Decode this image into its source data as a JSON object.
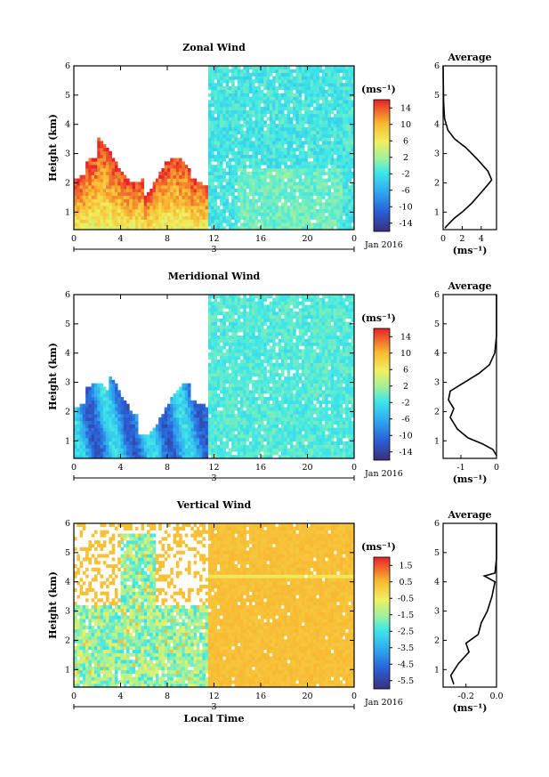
{
  "chart_data": [
    {
      "type": "heatmap",
      "title": "Zonal Wind",
      "ylabel": "Height (km)",
      "xlabel": "",
      "x_ticks": [
        "0",
        "4",
        "8",
        "12",
        "16",
        "20",
        "0"
      ],
      "y_ticks": [
        "1",
        "2",
        "3",
        "4",
        "5",
        "6"
      ],
      "ylim": [
        0.4,
        6
      ],
      "xlim": [
        0,
        24
      ],
      "date_label": "Jan 2016",
      "day_label": "3",
      "colorbar_unit": "(ms⁻¹)",
      "colorbar_ticks": [
        "14",
        "10",
        "6",
        "2",
        "-2",
        "-6",
        "-10",
        "-14"
      ],
      "colorbar_range": [
        -16,
        16
      ],
      "average": {
        "title": "Average",
        "xlabel": "(ms⁻¹)",
        "x_ticks": [
          "0",
          "2",
          "4"
        ],
        "xlim": [
          0,
          5.6
        ],
        "profile": [
          [
            0.2,
            0.45
          ],
          [
            0.3,
            0.5
          ],
          [
            0.6,
            0.6
          ],
          [
            1.2,
            0.8
          ],
          [
            2.0,
            1.0
          ],
          [
            3.0,
            1.3
          ],
          [
            3.8,
            1.6
          ],
          [
            4.6,
            1.9
          ],
          [
            5.1,
            2.1
          ],
          [
            4.7,
            2.4
          ],
          [
            3.6,
            2.8
          ],
          [
            2.4,
            3.2
          ],
          [
            1.2,
            3.5
          ],
          [
            0.5,
            3.8
          ],
          [
            0.15,
            4.2
          ],
          [
            0.05,
            4.8
          ],
          [
            0.02,
            5.5
          ],
          [
            0.0,
            6.0
          ]
        ]
      }
    },
    {
      "type": "heatmap",
      "title": "Meridional Wind",
      "ylabel": "Height (km)",
      "xlabel": "",
      "x_ticks": [
        "0",
        "4",
        "8",
        "12",
        "16",
        "20",
        "0"
      ],
      "y_ticks": [
        "1",
        "2",
        "3",
        "4",
        "5",
        "6"
      ],
      "ylim": [
        0.4,
        6
      ],
      "xlim": [
        0,
        24
      ],
      "date_label": "Jan 2016",
      "day_label": "3",
      "colorbar_unit": "(ms⁻¹)",
      "colorbar_ticks": [
        "14",
        "10",
        "6",
        "2",
        "-2",
        "-6",
        "-10",
        "-14"
      ],
      "colorbar_range": [
        -16,
        16
      ],
      "average": {
        "title": "Average",
        "xlabel": "(ms⁻¹)",
        "x_ticks": [
          "-1",
          "0"
        ],
        "xlim": [
          -1.5,
          0
        ],
        "profile": [
          [
            0.0,
            0.5
          ],
          [
            -0.1,
            0.7
          ],
          [
            -0.4,
            0.9
          ],
          [
            -0.8,
            1.1
          ],
          [
            -1.1,
            1.4
          ],
          [
            -1.3,
            1.8
          ],
          [
            -1.2,
            2.1
          ],
          [
            -1.35,
            2.4
          ],
          [
            -1.3,
            2.7
          ],
          [
            -0.9,
            3.0
          ],
          [
            -0.5,
            3.3
          ],
          [
            -0.2,
            3.6
          ],
          [
            -0.05,
            4.0
          ],
          [
            0.0,
            4.6
          ],
          [
            0.0,
            6.0
          ]
        ]
      }
    },
    {
      "type": "heatmap",
      "title": "Vertical Wind",
      "ylabel": "Height (km)",
      "xlabel": "Local Time",
      "x_ticks": [
        "0",
        "4",
        "8",
        "12",
        "16",
        "20",
        "0"
      ],
      "y_ticks": [
        "1",
        "2",
        "3",
        "4",
        "5",
        "6"
      ],
      "ylim": [
        0.4,
        6
      ],
      "xlim": [
        0,
        24
      ],
      "date_label": "Jan 2016",
      "day_label": "3",
      "colorbar_unit": "(ms⁻¹)",
      "colorbar_ticks": [
        "1.5",
        "0.5",
        "-0.5",
        "-1.5",
        "-2.5",
        "-3.5",
        "-4.5",
        "-5.5"
      ],
      "colorbar_range": [
        -6,
        2
      ],
      "average": {
        "title": "Average",
        "xlabel": "(ms⁻¹)",
        "x_ticks": [
          "-0.2",
          "0.0"
        ],
        "xlim": [
          -0.35,
          0
        ],
        "profile": [
          [
            -0.28,
            0.5
          ],
          [
            -0.3,
            0.8
          ],
          [
            -0.25,
            1.2
          ],
          [
            -0.18,
            1.6
          ],
          [
            -0.2,
            1.9
          ],
          [
            -0.12,
            2.2
          ],
          [
            -0.1,
            2.6
          ],
          [
            -0.06,
            3.0
          ],
          [
            -0.03,
            3.5
          ],
          [
            -0.01,
            4.0
          ],
          [
            -0.08,
            4.2
          ],
          [
            -0.01,
            4.3
          ],
          [
            0.0,
            4.8
          ],
          [
            0.0,
            6.0
          ]
        ]
      }
    }
  ]
}
